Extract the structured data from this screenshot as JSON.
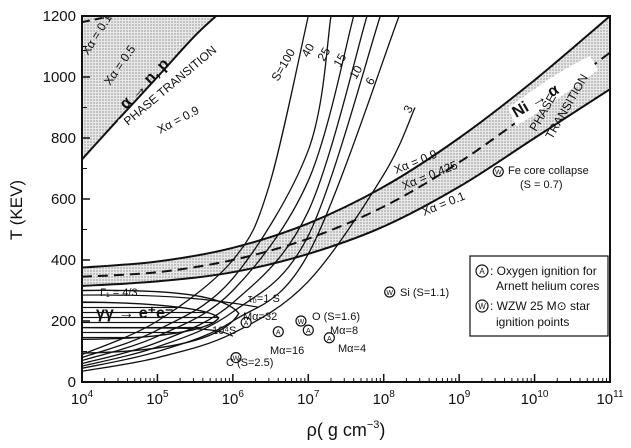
{
  "chart_data": {
    "type": "line",
    "x_scale": "log",
    "xlim": [
      10000,
      100000000000
    ],
    "ylim": [
      0,
      1200
    ],
    "ylabel": "T (KEV)",
    "xlabel": "ρ( g cm⁻³)",
    "xlabel_main": "ρ( g cm",
    "xlabel_exp": "−3",
    "xlabel_close": ")",
    "x_ticks": [
      {
        "base": "10",
        "exp": "4",
        "value": 10000
      },
      {
        "base": "10",
        "exp": "5",
        "value": 100000
      },
      {
        "base": "10",
        "exp": "6",
        "value": 1000000
      },
      {
        "base": "10",
        "exp": "7",
        "value": 10000000
      },
      {
        "base": "10",
        "exp": "8",
        "value": 100000000
      },
      {
        "base": "10",
        "exp": "9",
        "value": 1000000000
      },
      {
        "base": "10",
        "exp": "10",
        "value": 10000000000
      },
      {
        "base": "10",
        "exp": "11",
        "value": 100000000000
      }
    ],
    "y_ticks": [
      0,
      200,
      400,
      600,
      800,
      1000,
      1200
    ],
    "entropy_curves": [
      {
        "label": "S=100",
        "points": [
          [
            10000,
            90
          ],
          [
            100000,
            200
          ],
          [
            1000000,
            400
          ],
          [
            3000000,
            640
          ],
          [
            10000000,
            1200
          ]
        ]
      },
      {
        "label": "40",
        "points": [
          [
            10000,
            80
          ],
          [
            100000,
            170
          ],
          [
            1000000,
            340
          ],
          [
            10000000,
            760
          ],
          [
            20000000,
            1200
          ]
        ]
      },
      {
        "label": "25",
        "points": [
          [
            10000,
            70
          ],
          [
            100000,
            150
          ],
          [
            1000000,
            300
          ],
          [
            10000000,
            660
          ],
          [
            40000000,
            1200
          ]
        ]
      },
      {
        "label": "15",
        "points": [
          [
            10000,
            60
          ],
          [
            100000,
            130
          ],
          [
            1000000,
            260
          ],
          [
            10000000,
            560
          ],
          [
            60000000,
            1200
          ]
        ]
      },
      {
        "label": "10",
        "points": [
          [
            10000,
            52
          ],
          [
            100000,
            115
          ],
          [
            1000000,
            230
          ],
          [
            10000000,
            480
          ],
          [
            90000000,
            1200
          ]
        ]
      },
      {
        "label": "6",
        "points": [
          [
            10000,
            45
          ],
          [
            100000,
            100
          ],
          [
            1000000,
            200
          ],
          [
            10000000,
            420
          ],
          [
            160000000,
            1200
          ]
        ]
      },
      {
        "label": "3",
        "points": [
          [
            10000,
            35
          ],
          [
            100000,
            80
          ],
          [
            1000000,
            160
          ],
          [
            10000000,
            330
          ],
          [
            100000000,
            680
          ],
          [
            260000000,
            900
          ]
        ]
      }
    ],
    "alpha_np_band": {
      "upper": [
        [
          10000,
          1200
        ],
        [
          100000,
          1200
        ]
      ],
      "lower": [
        [
          10000,
          730
        ],
        [
          30000,
          860
        ],
        [
          100000,
          1000
        ],
        [
          300000,
          1130
        ],
        [
          600000,
          1200
        ]
      ],
      "xa_05": [
        [
          10000,
          1180
        ],
        [
          25000,
          1200
        ]
      ],
      "labels": [
        "Xα = 0.1",
        "Xα = 0.5",
        "α → n, p",
        "PHASE TRANSITION",
        "Xα = 0.9"
      ]
    },
    "ni_alpha_band": {
      "upper": [
        [
          10000,
          375
        ],
        [
          100000,
          395
        ],
        [
          1000000,
          440
        ],
        [
          10000000,
          520
        ],
        [
          100000000,
          640
        ],
        [
          1000000000,
          800
        ],
        [
          10000000000,
          990
        ],
        [
          100000000000,
          1200
        ]
      ],
      "lower": [
        [
          10000,
          315
        ],
        [
          100000,
          330
        ],
        [
          1000000,
          360
        ],
        [
          10000000,
          420
        ],
        [
          100000000,
          510
        ],
        [
          1000000000,
          640
        ],
        [
          10000000000,
          800
        ],
        [
          100000000000,
          960
        ]
      ],
      "xa_0425": [
        [
          10000,
          345
        ],
        [
          100000,
          360
        ],
        [
          1000000,
          400
        ],
        [
          10000000,
          470
        ],
        [
          100000000,
          575
        ],
        [
          1000000000,
          720
        ],
        [
          10000000000,
          895
        ],
        [
          100000000000,
          1080
        ]
      ],
      "labels": [
        "Ni → α",
        "PHASE TRANSITION",
        "Xα = 0.9",
        "Xα = 0.425",
        "Xα = 0.1"
      ]
    },
    "pair_region": {
      "label": "γγ → e⁺e⁻",
      "gamma_label": "Γ₁ = 4/3",
      "curves": [
        "τ₀ = 1 S",
        "10⁴ S"
      ]
    },
    "points": [
      {
        "kind": "A",
        "label": "Mα = 32",
        "x": 1500000,
        "y": 195
      },
      {
        "kind": "A",
        "label": "Mα = 16",
        "x": 4000000,
        "y": 165
      },
      {
        "kind": "A",
        "label": "Mα = 8",
        "x": 10000000,
        "y": 170
      },
      {
        "kind": "A",
        "label": "Mα = 4",
        "x": 19000000,
        "y": 145
      },
      {
        "kind": "W",
        "label": "C (S = 2.5)",
        "x": 1100000,
        "y": 80
      },
      {
        "kind": "W",
        "label": "O (S = 1.6)",
        "x": 8000000,
        "y": 200
      },
      {
        "kind": "W",
        "label": "Si (S = 1.1)",
        "x": 120000000,
        "y": 295
      },
      {
        "kind": "W",
        "label": "Fe core collapse",
        "sublabel": "(S = 0.7)",
        "x": 3300000000,
        "y": 690
      }
    ],
    "point_annotations": {
      "o_label": "O (S=1.6)",
      "ma32": "Mα=32",
      "ma16": "Mα=16",
      "ma8": "Mα=8",
      "ma4": "Mα=4",
      "c_label": "C (S=2.5)",
      "si_label": "Si (S=1.1)",
      "fe_label": "Fe core collapse",
      "fe_sub": "(S = 0.7)",
      "tau": "τ₀=1 S",
      "tau4": "10⁴S"
    },
    "legend": [
      {
        "symbol": "A",
        "line1": ": Oxygen ignition for",
        "line2": "Arnett helium cores"
      },
      {
        "symbol": "W",
        "line1": ": WZW  25 M⊙ star",
        "line2": "ignition points"
      }
    ],
    "band_labels": {
      "xa01_top": "Xα = 0.1",
      "xa05_top": "Xα = 0.5",
      "anp": "α → n, p",
      "phase": "PHASE TRANSITION",
      "xa09_top": "Xα = 0.9",
      "ni": "Ni → α",
      "phase2": "PHASE",
      "transition2": "TRANSITION",
      "xa09": "Xα = 0.9",
      "xa0425": "Xα = 0.425",
      "xa01": "Xα = 0.1"
    },
    "grid": false,
    "legend_position": "lower-right"
  }
}
